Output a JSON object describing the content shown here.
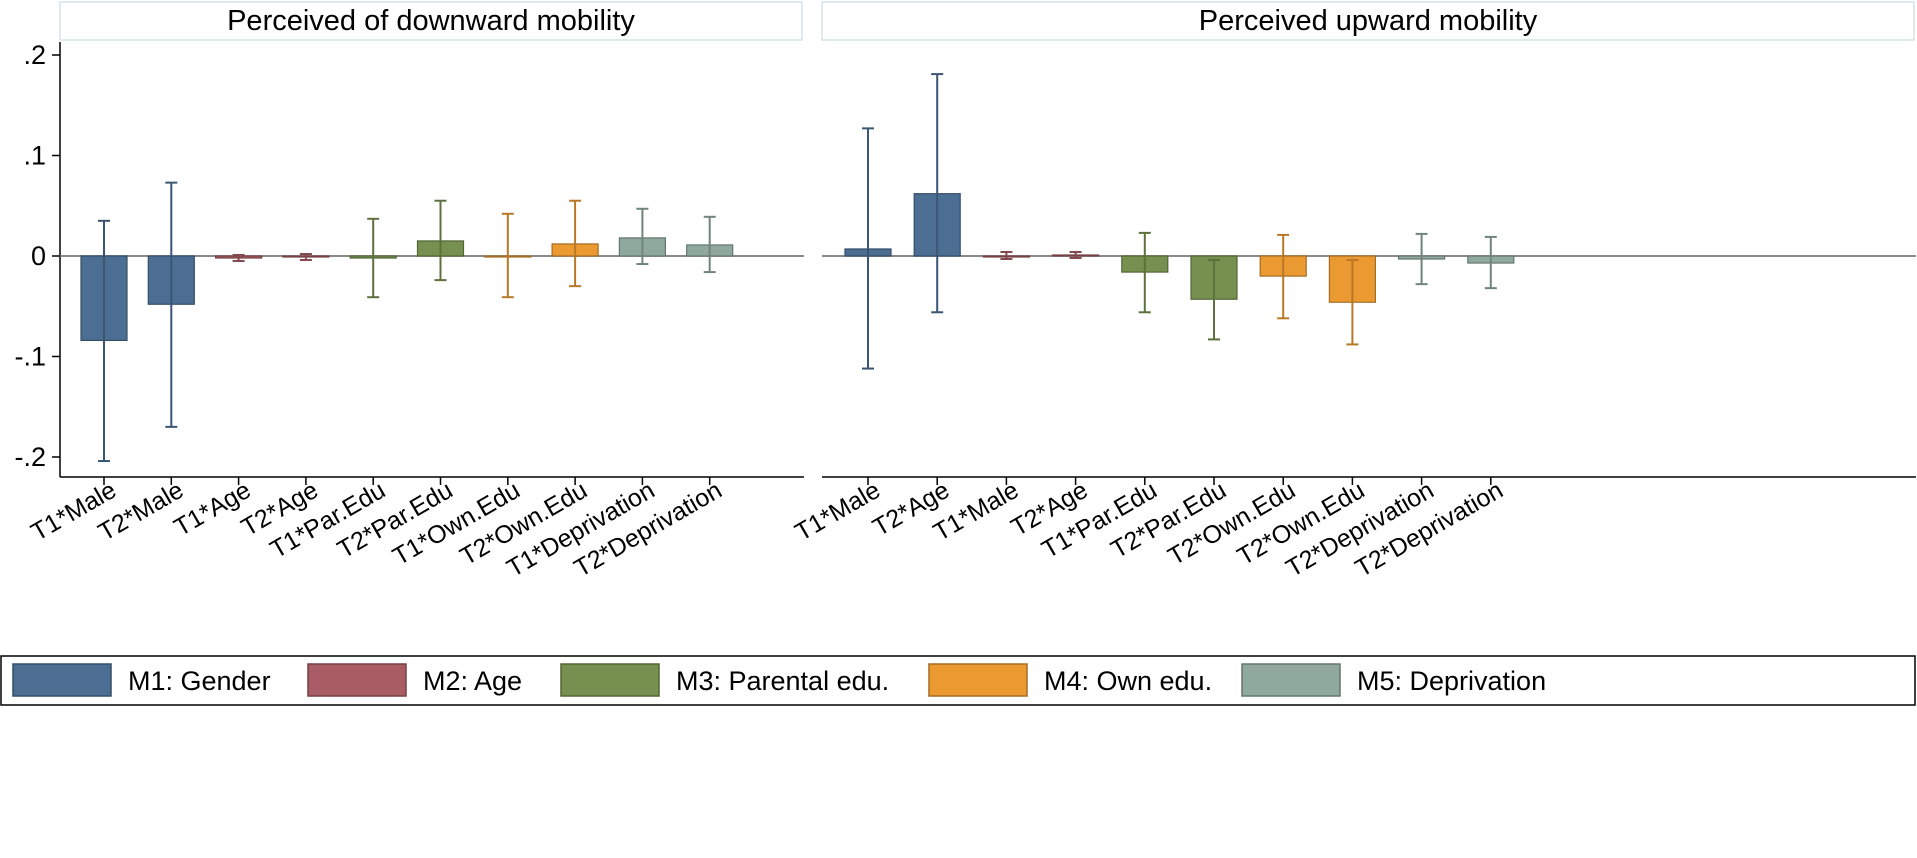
{
  "chart_data": {
    "type": "bar",
    "series_colors": [
      "#4c6e93",
      "#a95c63",
      "#76914f",
      "#eb9a32",
      "#90a99f"
    ],
    "yticks": [
      ".2",
      ".1",
      "0",
      "-.1",
      "-.2"
    ],
    "ylim": [
      -0.22,
      0.215
    ],
    "panels": [
      {
        "title": "Perceived of downward mobility",
        "bars": [
          {
            "label": "T1*Male",
            "series": 0,
            "value": -0.084,
            "ci": [
              -0.204,
              0.035
            ]
          },
          {
            "label": "T2*Male",
            "series": 0,
            "value": -0.048,
            "ci": [
              -0.17,
              0.073
            ]
          },
          {
            "label": "T1*Age",
            "series": 1,
            "value": -0.002,
            "ci": [
              -0.005,
              0.001
            ]
          },
          {
            "label": "T2*Age",
            "series": 1,
            "value": -0.001,
            "ci": [
              -0.004,
              0.002
            ]
          },
          {
            "label": "T1*Par.Edu",
            "series": 2,
            "value": -0.002,
            "ci": [
              -0.041,
              0.037
            ]
          },
          {
            "label": "T2*Par.Edu",
            "series": 2,
            "value": 0.015,
            "ci": [
              -0.024,
              0.055
            ]
          },
          {
            "label": "T1*Own.Edu",
            "series": 3,
            "value": 0.0,
            "ci": [
              -0.041,
              0.042
            ]
          },
          {
            "label": "T2*Own.Edu",
            "series": 3,
            "value": 0.012,
            "ci": [
              -0.03,
              0.055
            ]
          },
          {
            "label": "T1*Deprivation",
            "series": 4,
            "value": 0.018,
            "ci": [
              -0.008,
              0.047
            ]
          },
          {
            "label": "T2*Deprivation",
            "series": 4,
            "value": 0.011,
            "ci": [
              -0.016,
              0.039
            ]
          }
        ]
      },
      {
        "title": "Perceived upward mobility",
        "bars": [
          {
            "label": "T1*Male",
            "series": 0,
            "value": 0.007,
            "ci": [
              -0.112,
              0.127
            ]
          },
          {
            "label": "T2*Age",
            "series": 0,
            "value": 0.062,
            "ci": [
              -0.056,
              0.181
            ]
          },
          {
            "label": "T1*Male",
            "series": 1,
            "value": 0.0,
            "ci": [
              -0.003,
              0.004
            ]
          },
          {
            "label": "T2*Age",
            "series": 1,
            "value": 0.001,
            "ci": [
              -0.002,
              0.004
            ]
          },
          {
            "label": "T1*Par.Edu",
            "series": 2,
            "value": -0.016,
            "ci": [
              -0.056,
              0.023
            ]
          },
          {
            "label": "T2*Par.Edu",
            "series": 2,
            "value": -0.043,
            "ci": [
              -0.083,
              -0.004
            ]
          },
          {
            "label": "T2*Own.Edu",
            "series": 3,
            "value": -0.02,
            "ci": [
              -0.062,
              0.021
            ]
          },
          {
            "label": "T2*Own.Edu",
            "series": 3,
            "value": -0.046,
            "ci": [
              -0.088,
              -0.004
            ]
          },
          {
            "label": "T2*Deprivation",
            "series": 4,
            "value": -0.003,
            "ci": [
              -0.028,
              0.022
            ]
          },
          {
            "label": "T2*Deprivation",
            "series": 4,
            "value": -0.007,
            "ci": [
              -0.032,
              0.019
            ]
          }
        ]
      }
    ],
    "legend": {
      "position": "bottom",
      "items": [
        "M1: Gender",
        "M2: Age",
        "M3: Parental edu.",
        "M4: Own edu.",
        "M5: Deprivation"
      ]
    }
  }
}
